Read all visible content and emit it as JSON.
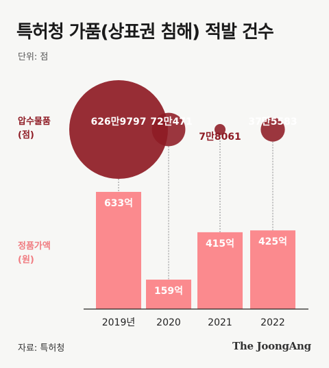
{
  "title": "특허청 가품(상표권 침해) 적발 건수",
  "unit_label": "단위: 점",
  "seized_label_line1": "압수물품",
  "seized_label_line2": "(점)",
  "genuine_label_line1": "정품가액",
  "genuine_label_line2": "(원)",
  "source": "자료: 특허청",
  "logo_text": "The JoongAng",
  "colors": {
    "seized": "#8e1b24",
    "genuine": "#fb8a8e",
    "axis": "#222222",
    "guide": "#8a8a8a"
  },
  "chart_data": {
    "type": "bar",
    "categories": [
      "2019년",
      "2020",
      "2021",
      "2022"
    ],
    "series": [
      {
        "name": "정품가액",
        "unit": "억 원",
        "values": [
          633,
          159,
          415,
          425
        ],
        "value_labels": [
          "633억",
          "159억",
          "415억",
          "425억"
        ]
      },
      {
        "name": "압수물품",
        "unit": "점",
        "mark": "bubble",
        "values": [
          6269797,
          720471,
          78061,
          375583
        ],
        "value_labels": [
          "626만9797",
          "72만471",
          "7만8061",
          "37만5583"
        ]
      }
    ]
  }
}
